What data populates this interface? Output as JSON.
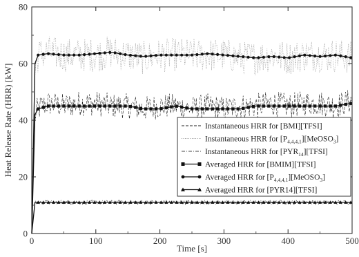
{
  "chart_data": {
    "type": "line",
    "xlabel": "Time [s]",
    "ylabel": "Heat Release Rate (HRR) [kW]",
    "xlim": [
      0,
      500
    ],
    "ylim": [
      0,
      80
    ],
    "xticks": [
      0,
      100,
      200,
      300,
      400,
      500
    ],
    "yticks": [
      0,
      20,
      40,
      60,
      80
    ],
    "grid": false,
    "legend_position": "center-right",
    "series": [
      {
        "name": "Instantaneous HRR for [BMI][TFSI]",
        "style": "dashed",
        "kind": "instantaneous",
        "x": [
          0,
          5,
          10,
          25,
          50,
          75,
          100,
          125,
          150,
          175,
          200,
          225,
          250,
          275,
          300,
          325,
          350,
          375,
          400,
          425,
          450,
          475,
          500
        ],
        "values": [
          0,
          42,
          44,
          46,
          45,
          46,
          46,
          45,
          45,
          44,
          45,
          45,
          44,
          45,
          44,
          45,
          45,
          46,
          45,
          46,
          46,
          45,
          47
        ],
        "noise": 4.5
      },
      {
        "name": "Instantaneous HRR for [P4,4,4,1][MeOSO3]",
        "style": "dotted",
        "kind": "instantaneous",
        "x": [
          0,
          5,
          10,
          25,
          50,
          75,
          100,
          125,
          150,
          175,
          200,
          225,
          250,
          275,
          300,
          325,
          350,
          375,
          400,
          425,
          450,
          475,
          500
        ],
        "values": [
          0,
          58,
          63,
          64,
          63,
          63,
          63,
          64,
          63,
          62,
          63,
          63,
          63,
          63,
          63,
          62,
          62,
          63,
          62,
          63,
          63,
          63,
          62
        ],
        "noise": 6
      },
      {
        "name": "Instantaneous HRR for [PYR14][TFSI]",
        "style": "dashdot",
        "kind": "instantaneous",
        "x": [
          0,
          5,
          10,
          25,
          50,
          75,
          100,
          125,
          150,
          175,
          200,
          225,
          250,
          275,
          300,
          325,
          350,
          375,
          400,
          425,
          450,
          475,
          500
        ],
        "values": [
          0,
          11,
          11,
          11,
          11,
          11,
          11,
          11,
          11,
          11,
          11,
          11,
          11,
          11,
          11,
          11,
          11,
          11,
          11,
          11,
          11,
          11,
          11
        ],
        "noise": 0.8
      },
      {
        "name": "Averaged HRR for [BMIM][TFSI]",
        "style": "solid",
        "marker": "square",
        "kind": "averaged",
        "x": [
          0,
          5,
          10,
          25,
          50,
          75,
          100,
          125,
          150,
          175,
          200,
          225,
          250,
          275,
          300,
          325,
          350,
          375,
          400,
          425,
          450,
          475,
          500
        ],
        "values": [
          0,
          42,
          44,
          45,
          45,
          45,
          45,
          45,
          45,
          44,
          44,
          45,
          44,
          44,
          44,
          44,
          45,
          45,
          45,
          45,
          45,
          45,
          46
        ]
      },
      {
        "name": "Averaged HRR for [P4,4,4,1][MeOSO3]",
        "style": "solid",
        "marker": "circle",
        "kind": "averaged",
        "x": [
          0,
          5,
          10,
          25,
          50,
          75,
          100,
          125,
          150,
          175,
          200,
          225,
          250,
          275,
          300,
          325,
          350,
          375,
          400,
          425,
          450,
          475,
          500
        ],
        "values": [
          0,
          60,
          63,
          63.5,
          63,
          63,
          63.5,
          64,
          63,
          62.5,
          63,
          63,
          63,
          63.5,
          63,
          62.5,
          62,
          62.5,
          62,
          63,
          62.5,
          63,
          62
        ]
      },
      {
        "name": "Averaged HRR for [PYR14][TFSI]",
        "style": "solid",
        "marker": "triangle",
        "kind": "averaged",
        "x": [
          0,
          5,
          10,
          25,
          50,
          75,
          100,
          125,
          150,
          175,
          200,
          225,
          250,
          275,
          300,
          325,
          350,
          375,
          400,
          425,
          450,
          475,
          500
        ],
        "values": [
          0,
          11,
          11,
          11,
          11,
          11,
          11,
          11,
          11,
          11,
          11,
          11,
          11,
          11,
          11,
          11,
          11,
          11,
          11,
          11,
          11,
          11,
          11
        ]
      }
    ]
  },
  "legend": {
    "items": [
      {
        "prefix": "Instantaneous HRR for [BMI][TFSI]"
      },
      {
        "prefix": "Instantaneous HRR for [P",
        "sub1": "4,4,4,1",
        "mid": "][MeOSO",
        "sub2": "3",
        "suffix": "]"
      },
      {
        "prefix": "Instantaneous HRR for [PYR",
        "sub1": "14",
        "mid": "][TFSI]"
      },
      {
        "prefix": "Averaged HRR for [BMIM][TFSI]"
      },
      {
        "prefix": "Averaged HRR for [P",
        "sub1": "4,4,4,1",
        "mid": "][MeOSO",
        "sub2": "3",
        "suffix": "]"
      },
      {
        "prefix": "Averaged HRR for [PYR14][TFSI]"
      }
    ]
  }
}
